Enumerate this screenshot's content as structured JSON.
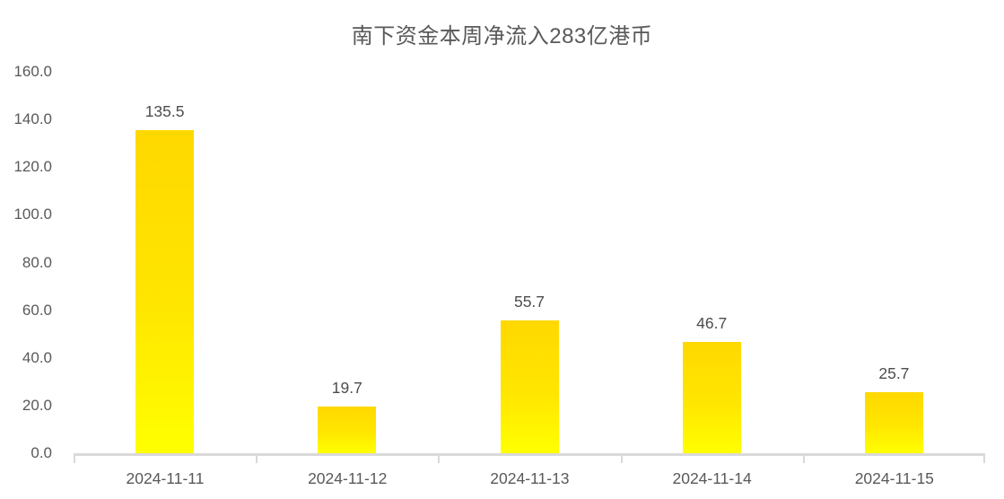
{
  "chart_data": {
    "type": "bar",
    "title": "南下资金本周净流入283亿港币",
    "categories": [
      "2024-11-11",
      "2024-11-12",
      "2024-11-13",
      "2024-11-14",
      "2024-11-15"
    ],
    "values": [
      135.5,
      19.7,
      55.7,
      46.7,
      25.7
    ],
    "value_labels": [
      "135.5",
      "19.7",
      "55.7",
      "46.7",
      "25.7"
    ],
    "y_tick_labels": [
      "160.0",
      "140.0",
      "120.0",
      "100.0",
      "80.0",
      "60.0",
      "40.0",
      "20.0",
      "0.0"
    ],
    "y_tick_values": [
      160,
      140,
      120,
      100,
      80,
      60,
      40,
      20,
      0
    ],
    "ylim": [
      0,
      160
    ],
    "xlabel": "",
    "ylabel": "",
    "grid": false,
    "legend_position": "none",
    "colors": {
      "bar_gradient_top": "#ffd800",
      "bar_gradient_bottom": "#ffff00",
      "axis_line": "#d9d9d9",
      "title_text": "#595959",
      "axis_text": "#595959",
      "value_text": "#4d4d4d",
      "background": "#ffffff"
    }
  }
}
